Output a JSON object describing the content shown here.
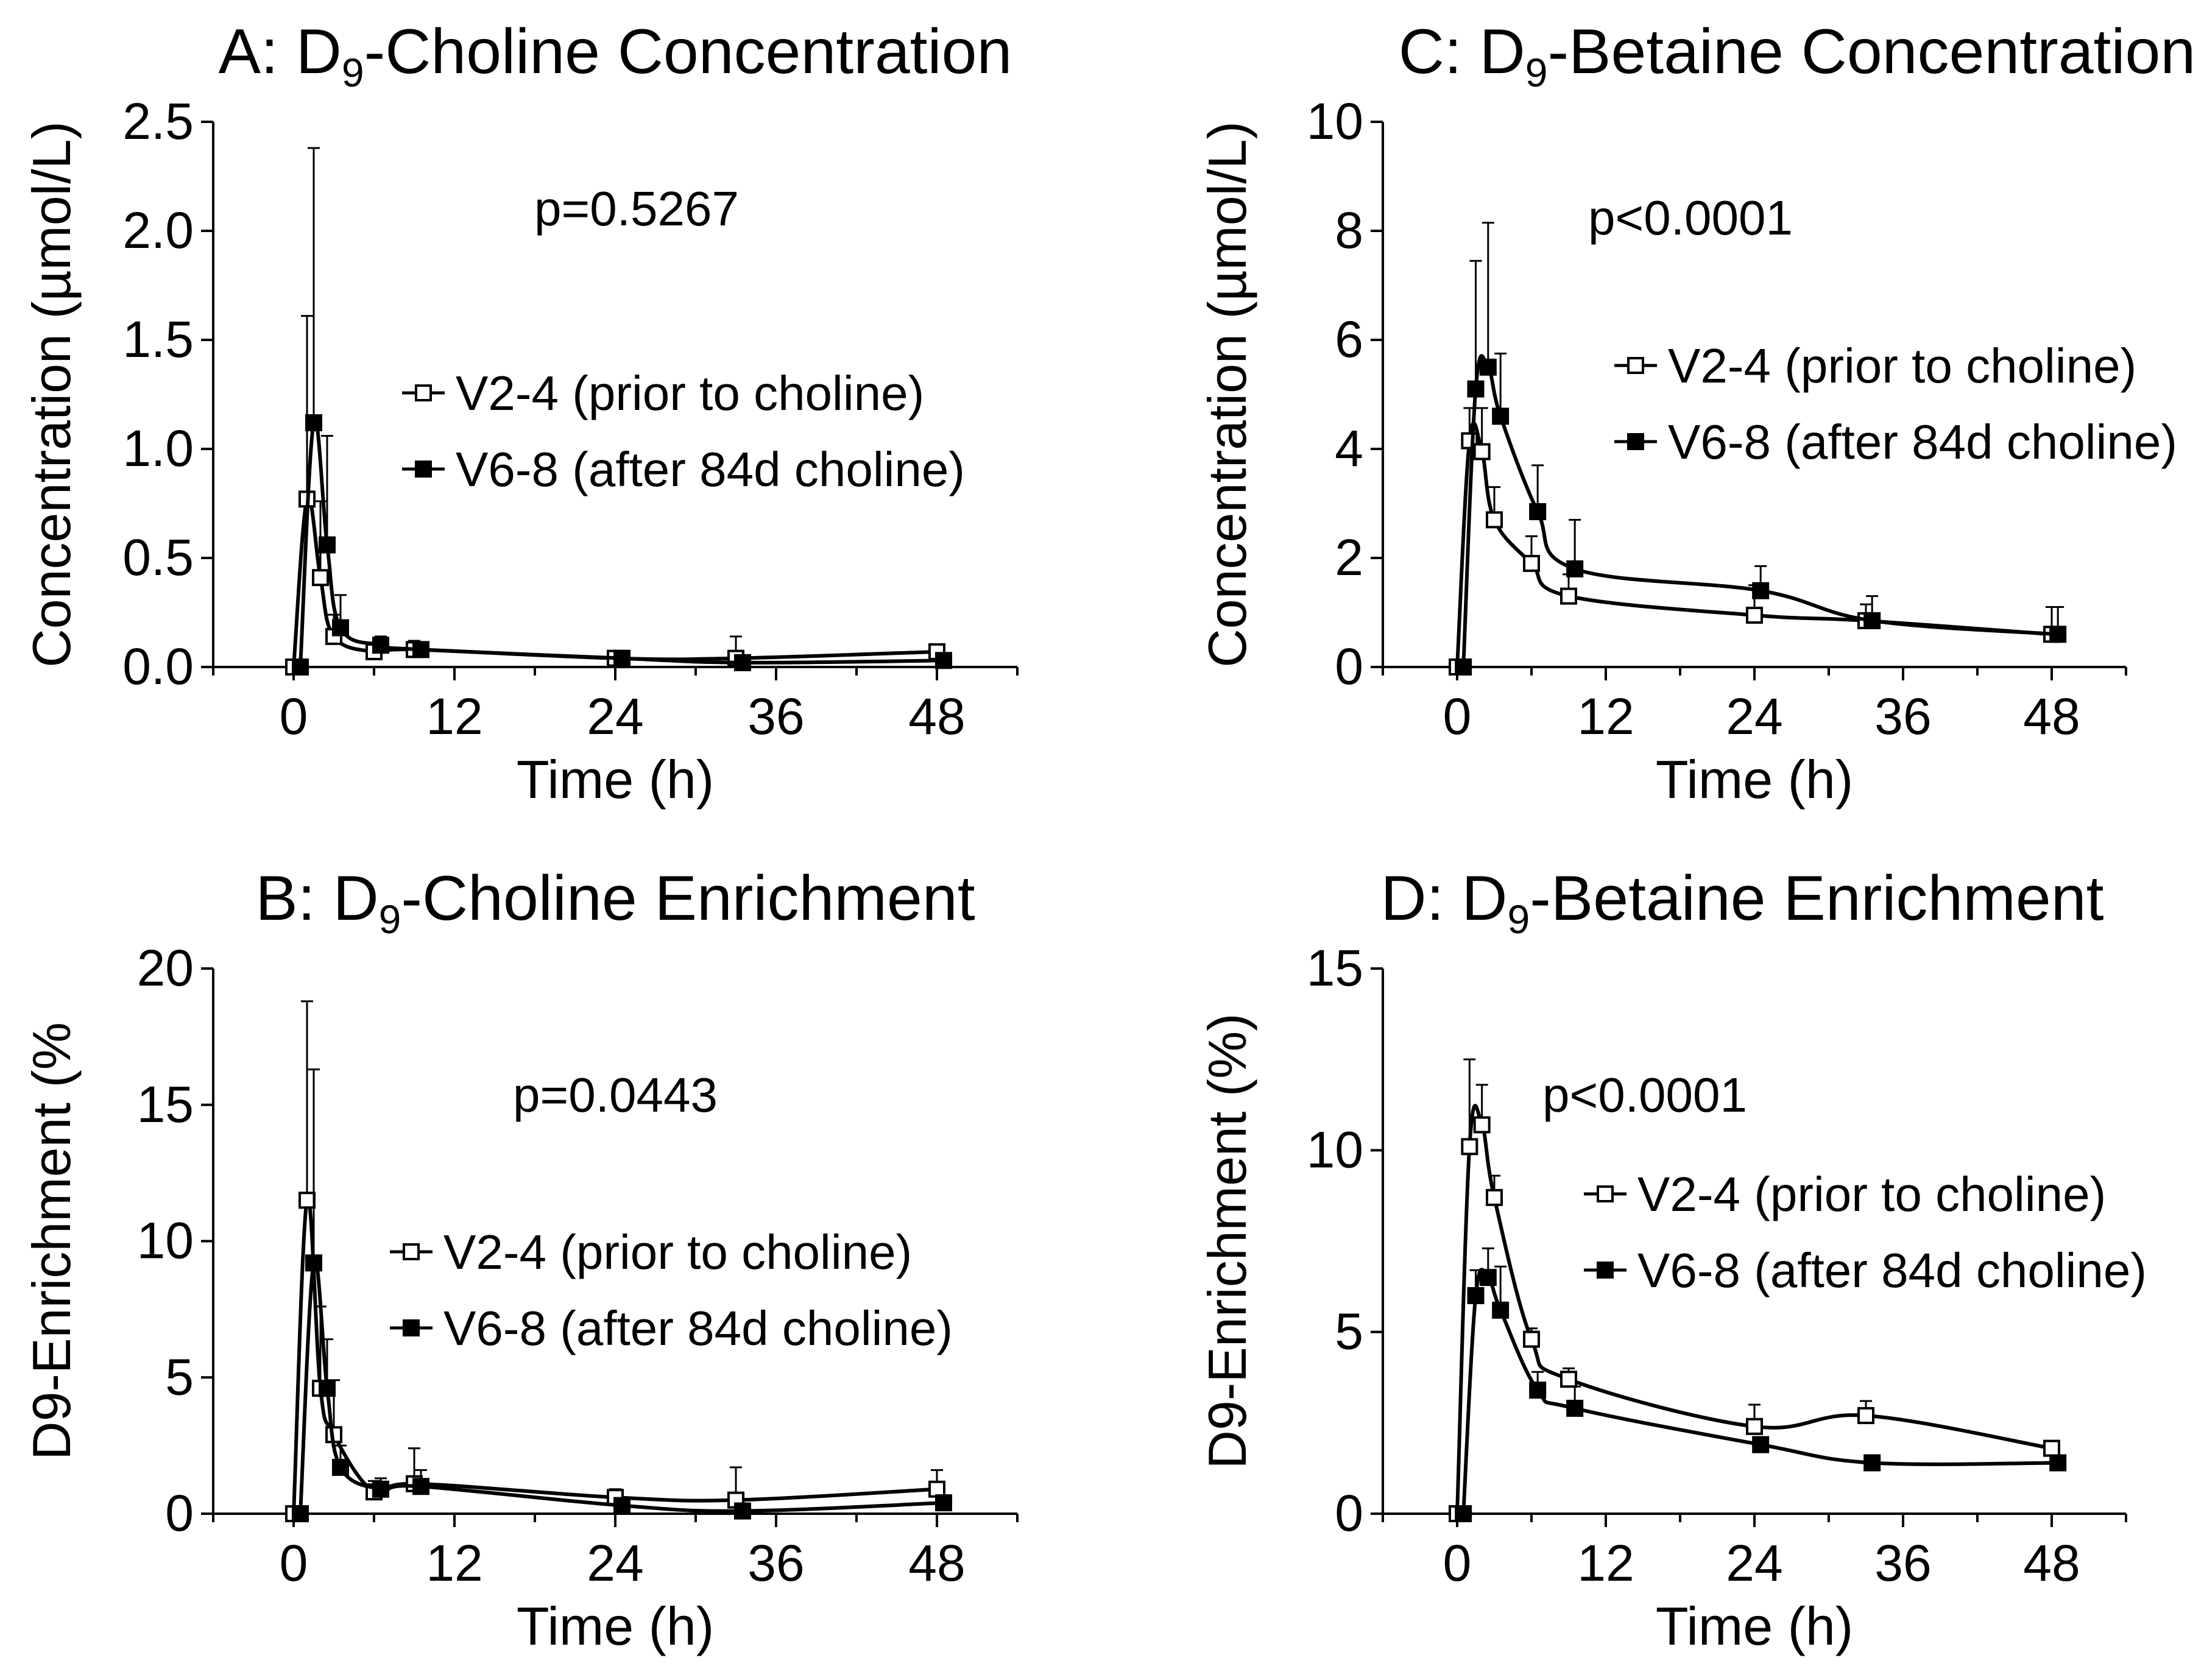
{
  "chart_data": [
    {
      "id": "A",
      "type": "line",
      "title_prefix": "A: D",
      "title_sub": "9",
      "title_suffix": "-Choline Concentration",
      "xlabel": "Time (h)",
      "ylabel": "Concentration (µmol/L)",
      "xlim": [
        -6,
        54
      ],
      "ylim": [
        0,
        2.5
      ],
      "xticks": [
        0,
        12,
        24,
        36,
        48
      ],
      "yticks": [
        0,
        0.5,
        1.0,
        1.5,
        2.0,
        2.5
      ],
      "ytick_labels": [
        "0.0",
        "0.5",
        "1.0",
        "1.5",
        "2.0",
        "2.5"
      ],
      "annotation": "p=0.5267",
      "legend_position": "center-right",
      "series": [
        {
          "name": "V2-4 (prior to choline)",
          "marker": "open-square",
          "x": [
            0,
            1,
            2,
            3,
            6,
            9,
            24,
            33,
            48
          ],
          "y": [
            0,
            0.77,
            0.41,
            0.14,
            0.07,
            0.08,
            0.04,
            0.04,
            0.07
          ],
          "err": [
            0,
            0.84,
            0.35,
            0.1,
            0.04,
            0.04,
            0.02,
            0.1,
            0.03
          ]
        },
        {
          "name": "V6-8 (after 84d choline)",
          "marker": "filled-square",
          "x": [
            0.5,
            1.5,
            2.5,
            3.5,
            6.5,
            9.5,
            24.5,
            33.5,
            48.5
          ],
          "y": [
            0,
            1.12,
            0.56,
            0.18,
            0.1,
            0.08,
            0.04,
            0.02,
            0.03
          ],
          "err": [
            0,
            1.26,
            0.5,
            0.15,
            0.04,
            0.03,
            0.02,
            0.02,
            0.02
          ]
        }
      ]
    },
    {
      "id": "B",
      "type": "line",
      "title_prefix": "B: D",
      "title_sub": "9",
      "title_suffix": "-Choline Enrichment",
      "xlabel": "Time (h)",
      "ylabel": "D9-Enrichment (%",
      "xlim": [
        -6,
        54
      ],
      "ylim": [
        0,
        20
      ],
      "xticks": [
        0,
        12,
        24,
        36,
        48
      ],
      "yticks": [
        0,
        5,
        10,
        15,
        20
      ],
      "ytick_labels": [
        "0",
        "5",
        "10",
        "15",
        "20"
      ],
      "annotation": "p=0.0443",
      "legend_position": "center-right",
      "series": [
        {
          "name": "V2-4 (prior to choline)",
          "marker": "open-square",
          "x": [
            0,
            1,
            2,
            3,
            6,
            9,
            24,
            33,
            48
          ],
          "y": [
            0,
            11.5,
            4.6,
            2.9,
            0.8,
            1.1,
            0.6,
            0.5,
            0.9
          ],
          "err": [
            0,
            7.3,
            3.0,
            2.0,
            0.4,
            1.3,
            0.3,
            1.2,
            0.7
          ]
        },
        {
          "name": "V6-8 (after 84d choline)",
          "marker": "filled-square",
          "x": [
            0.5,
            1.5,
            2.5,
            3.5,
            6.5,
            9.5,
            24.5,
            33.5,
            48.5
          ],
          "y": [
            0,
            9.2,
            4.6,
            1.7,
            0.9,
            1.0,
            0.3,
            0.1,
            0.4
          ],
          "err": [
            0,
            7.1,
            1.8,
            0.8,
            0.4,
            0.6,
            0.2,
            0.1,
            0.2
          ]
        }
      ]
    },
    {
      "id": "C",
      "type": "line",
      "title_prefix": "C: D",
      "title_sub": "9",
      "title_suffix": "-Betaine Concentration",
      "xlabel": "Time (h)",
      "ylabel": "Concentration (µmol/L)",
      "xlim": [
        -6,
        54
      ],
      "ylim": [
        0,
        10
      ],
      "xticks": [
        0,
        12,
        24,
        36,
        48
      ],
      "yticks": [
        0,
        2,
        4,
        6,
        8,
        10
      ],
      "ytick_labels": [
        "0",
        "2",
        "4",
        "6",
        "8",
        "10"
      ],
      "annotation": "p<0.0001",
      "legend_position": "top-right",
      "series": [
        {
          "name": "V2-4 (prior to choline)",
          "marker": "open-square",
          "x": [
            0,
            1,
            2,
            3,
            6,
            9,
            24,
            33,
            48
          ],
          "y": [
            0,
            4.15,
            3.95,
            2.7,
            1.9,
            1.3,
            0.95,
            0.85,
            0.6
          ],
          "err": [
            0,
            0.6,
            0.8,
            0.6,
            0.5,
            0.4,
            0.55,
            0.3,
            0.5
          ]
        },
        {
          "name": "V6-8 (after 84d choline)",
          "marker": "filled-square",
          "x": [
            0.5,
            1.5,
            2.5,
            3.5,
            6.5,
            9.5,
            24.5,
            33.5,
            48.5
          ],
          "y": [
            0,
            5.1,
            5.5,
            4.6,
            2.85,
            1.8,
            1.4,
            0.85,
            0.6
          ],
          "err": [
            0,
            2.35,
            2.65,
            1.15,
            0.85,
            0.9,
            0.45,
            0.45,
            0.5
          ]
        }
      ]
    },
    {
      "id": "D",
      "type": "line",
      "title_prefix": "D: D",
      "title_sub": "9",
      "title_suffix": "-Betaine Enrichment",
      "xlabel": "Time (h)",
      "ylabel": "D9-Enrichment (%)",
      "xlim": [
        -6,
        54
      ],
      "ylim": [
        0,
        15
      ],
      "xticks": [
        0,
        12,
        24,
        36,
        48
      ],
      "yticks": [
        0,
        5,
        10,
        15
      ],
      "ytick_labels": [
        "0",
        "5",
        "10",
        "15"
      ],
      "annotation": "p<0.0001",
      "legend_position": "center-right",
      "series": [
        {
          "name": "V2-4 (prior to choline)",
          "marker": "open-square",
          "x": [
            0,
            1,
            2,
            3,
            6,
            9,
            24,
            33,
            48
          ],
          "y": [
            0,
            10.1,
            10.7,
            8.7,
            4.8,
            3.7,
            2.4,
            2.7,
            1.8
          ],
          "err": [
            0,
            2.4,
            1.1,
            0.6,
            0.3,
            0.3,
            0.6,
            0.4,
            0.2
          ]
        },
        {
          "name": "V6-8 (after 84d choline)",
          "marker": "filled-square",
          "x": [
            0.5,
            1.5,
            2.5,
            3.5,
            6.5,
            9.5,
            24.5,
            33.5,
            48.5
          ],
          "y": [
            0,
            6.0,
            6.5,
            5.6,
            3.4,
            2.9,
            1.9,
            1.4,
            1.4
          ],
          "err": [
            0,
            0.7,
            0.8,
            1.2,
            0.5,
            0.6,
            0.1,
            0.2,
            0.1
          ]
        }
      ]
    }
  ]
}
